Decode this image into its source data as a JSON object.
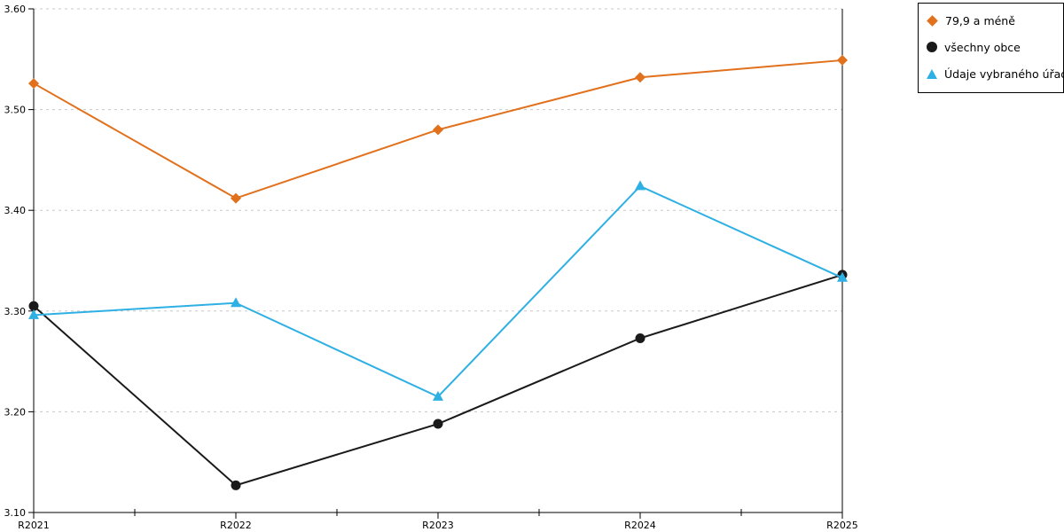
{
  "chart_data": {
    "type": "line",
    "title": "",
    "xlabel": "",
    "ylabel": "",
    "categories": [
      "R2021",
      "R2022",
      "R2023",
      "R2024",
      "R2025"
    ],
    "series": [
      {
        "name": "79,9 a méně",
        "marker": "diamond",
        "color": "#E2711D",
        "values": [
          3.526,
          3.412,
          3.48,
          3.532,
          3.549
        ]
      },
      {
        "name": "všechny obce",
        "marker": "circle",
        "color": "#1A1A1A",
        "values": [
          3.305,
          3.127,
          3.188,
          3.273,
          3.336
        ]
      },
      {
        "name": "Údaje vybraného úřadu",
        "marker": "triangle",
        "color": "#2FB0E4",
        "values": [
          3.296,
          3.308,
          3.215,
          3.424,
          3.333
        ]
      }
    ],
    "ylim": [
      3.1,
      3.6
    ],
    "y_ticks": [
      3.1,
      3.2,
      3.3,
      3.4,
      3.5,
      3.6
    ],
    "y_tick_labels": [
      "3.10",
      "3.20",
      "3.30",
      "3.40",
      "3.50",
      "3.60"
    ],
    "x_minor_ticks_between_categories": true,
    "grid": "horizontal dashed",
    "grid_color": "#C8C8C8",
    "axis_color": "#000000",
    "legend_position": "outside-top-right"
  }
}
